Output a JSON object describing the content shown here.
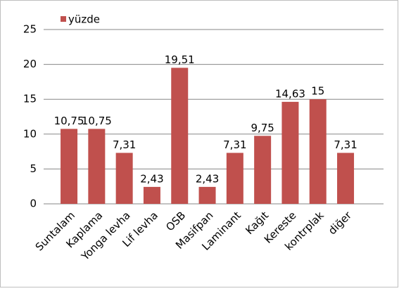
{
  "chart_data": {
    "type": "bar",
    "categories": [
      "Suntalam",
      "Kaplama",
      "Yonga levha",
      "Lif levha",
      "OSB",
      "Masifpan",
      "Laminant",
      "Kağıt",
      "Kereste",
      "kontrplak",
      "diğer"
    ],
    "series": [
      {
        "name": "yüzde",
        "color": "#c0504d",
        "values": [
          10.75,
          10.75,
          7.31,
          2.43,
          19.51,
          2.43,
          7.31,
          9.75,
          14.63,
          15,
          7.31
        ],
        "value_labels": [
          "10,75",
          "10,75",
          "7,31",
          "2,43",
          "19,51",
          "2,43",
          "7,31",
          "9,75",
          "14,63",
          "15",
          "7,31"
        ]
      }
    ],
    "ylim": [
      0,
      25
    ],
    "yticks": [
      0,
      5,
      10,
      15,
      20,
      25
    ],
    "grid": true,
    "legend": "top-left"
  }
}
